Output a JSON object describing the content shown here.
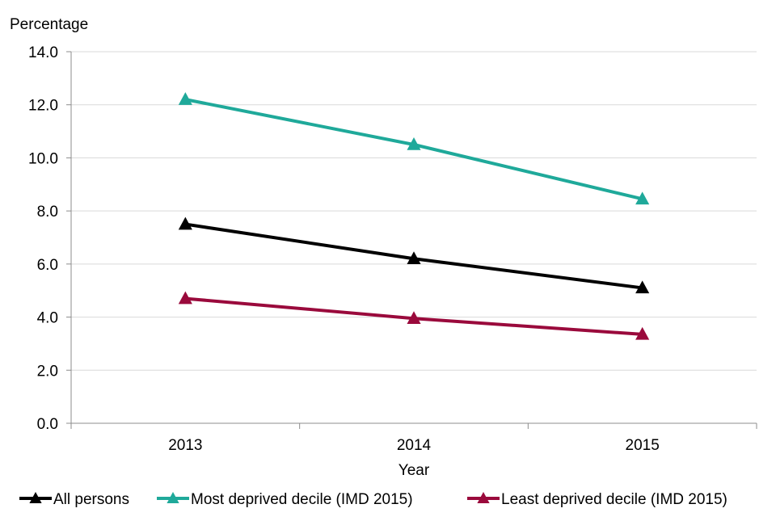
{
  "chart_data": {
    "type": "line",
    "title": "",
    "ylabel": "Percentage",
    "xlabel": "Year",
    "categories": [
      "2013",
      "2014",
      "2015"
    ],
    "ylim": [
      0,
      14
    ],
    "ytick_step": 2,
    "ytick_labels": [
      "0.0",
      "2.0",
      "4.0",
      "6.0",
      "8.0",
      "10.0",
      "12.0",
      "14.0"
    ],
    "grid": true,
    "legend_position": "bottom",
    "series": [
      {
        "name": "All persons",
        "values": [
          7.5,
          6.2,
          5.1
        ],
        "color": "#000000"
      },
      {
        "name": "Most deprived decile (IMD 2015)",
        "values": [
          12.2,
          10.5,
          8.45
        ],
        "color": "#1fa99a"
      },
      {
        "name": "Least deprived decile (IMD 2015)",
        "values": [
          4.7,
          3.95,
          3.35
        ],
        "color": "#9a0a3c"
      }
    ]
  }
}
